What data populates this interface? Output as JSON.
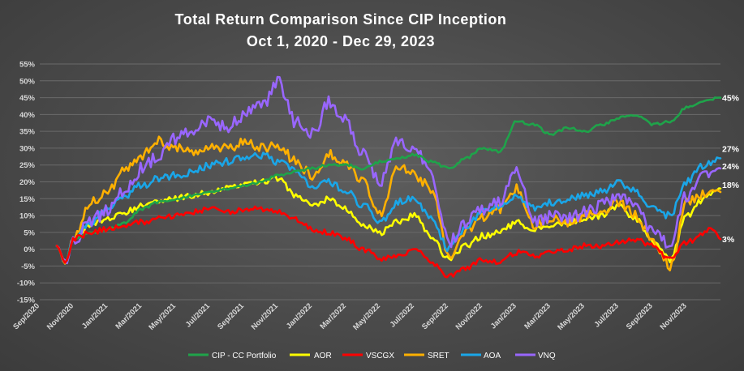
{
  "colors": {
    "cip": "#1fa34a",
    "aor": "#ffff00",
    "vscgx": "#ff0000",
    "sret": "#ffb000",
    "aoa": "#1aa6e8",
    "vnq": "#9966ff"
  },
  "chart_data": {
    "type": "line",
    "title": "Total Return Comparison Since CIP Inception",
    "subtitle": "Oct 1, 2020 - Dec 29, 2023",
    "xlabel": "",
    "ylabel": "",
    "ylim": [
      -15,
      55
    ],
    "y_ticks": [
      55,
      50,
      45,
      40,
      35,
      30,
      25,
      20,
      15,
      10,
      5,
      0,
      -5,
      -10,
      -15
    ],
    "y_tick_labels": [
      "55%",
      "50%",
      "45%",
      "40%",
      "35%",
      "30%",
      "25%",
      "20%",
      "15%",
      "10%",
      "5%",
      "0%",
      "-5%",
      "-10%",
      "-15%"
    ],
    "x_tick_labels": [
      "Sep/2020",
      "Nov/2020",
      "Jan/2021",
      "Mar/2021",
      "May/2021",
      "Jul/2021",
      "Sep/2021",
      "Nov/2021",
      "Jan/2022",
      "Mar/2022",
      "May/2022",
      "Jul/2022",
      "Sep/2022",
      "Nov/2022",
      "Jan/2023",
      "Mar/2023",
      "May/2023",
      "Jul/2023",
      "Sep/2023",
      "Nov/2023"
    ],
    "x_tick_months": [
      -1,
      1,
      3,
      5,
      7,
      9,
      11,
      13,
      15,
      17,
      19,
      21,
      23,
      25,
      27,
      29,
      31,
      33,
      35,
      37
    ],
    "x_range_months": [
      -1,
      38.97
    ],
    "grid": true,
    "legend_position": "bottom",
    "series": [
      {
        "name": "CIP - CC Portfolio",
        "color_key": "cip",
        "end_label": "45%",
        "x": [
          0,
          0.5,
          1,
          2,
          3,
          4,
          5,
          6,
          7,
          8,
          9,
          10,
          11,
          12,
          13,
          14,
          15,
          16,
          17,
          18,
          19,
          20,
          21,
          22,
          23,
          24,
          25,
          26,
          27,
          28,
          29,
          30,
          31,
          32,
          33,
          34,
          35,
          36,
          37,
          38,
          38.97
        ],
        "values": [
          1,
          -4,
          3,
          5,
          6,
          8,
          12,
          14,
          15,
          16,
          17,
          18,
          19,
          20,
          22,
          23,
          24,
          25,
          25,
          24,
          26,
          27,
          28,
          26,
          24,
          27,
          30,
          29,
          38,
          37,
          34,
          36,
          35,
          37,
          39,
          40,
          37,
          38,
          42,
          44,
          45
        ]
      },
      {
        "name": "AOR",
        "color_key": "aor",
        "end_label": "18%",
        "x": [
          0,
          0.5,
          1,
          2,
          3,
          4,
          5,
          6,
          7,
          8,
          9,
          10,
          11,
          12,
          13,
          14,
          15,
          16,
          17,
          18,
          19,
          20,
          21,
          22,
          23,
          24,
          25,
          26,
          27,
          28,
          29,
          30,
          31,
          32,
          33,
          34,
          35,
          36,
          37,
          38,
          38.97
        ],
        "values": [
          1,
          -4,
          3,
          7,
          9,
          11,
          13,
          14,
          15,
          16,
          17,
          18,
          19,
          20,
          21,
          16,
          13,
          15,
          12,
          7,
          5,
          8,
          10,
          4,
          -3,
          1,
          4,
          5,
          8,
          6,
          7,
          8,
          9,
          10,
          13,
          9,
          2,
          -3,
          10,
          15,
          18
        ]
      },
      {
        "name": "VSCGX",
        "color_key": "vscgx",
        "end_label": "3%",
        "x": [
          0,
          0.5,
          1,
          2,
          3,
          4,
          5,
          6,
          7,
          8,
          9,
          10,
          11,
          12,
          13,
          14,
          15,
          16,
          17,
          18,
          19,
          20,
          21,
          22,
          23,
          24,
          25,
          26,
          27,
          28,
          29,
          30,
          31,
          32,
          33,
          34,
          35,
          36,
          37,
          38,
          38.5,
          38.97
        ],
        "values": [
          1,
          -4,
          3,
          5,
          6,
          7,
          8,
          9,
          10,
          11,
          12,
          11,
          12,
          12,
          11,
          9,
          6,
          5,
          3,
          0,
          -3,
          -2,
          0,
          -4,
          -8,
          -6,
          -3,
          -4,
          -1,
          -2,
          -1,
          0,
          1,
          1,
          2,
          3,
          1,
          -3,
          2,
          5,
          6,
          3
        ]
      },
      {
        "name": "SRET",
        "color_key": "sret",
        "end_label": "",
        "x": [
          0,
          0.5,
          1,
          2,
          3,
          4,
          5,
          6,
          7,
          8,
          9,
          10,
          11,
          12,
          13,
          14,
          15,
          16,
          17,
          18,
          19,
          20,
          21,
          22,
          23,
          24,
          25,
          26,
          27,
          28,
          29,
          30,
          31,
          32,
          33,
          34,
          35,
          36,
          37,
          38,
          38.97
        ],
        "values": [
          1,
          -4,
          3,
          14,
          17,
          24,
          28,
          32,
          30,
          29,
          31,
          30,
          32,
          30,
          31,
          26,
          22,
          28,
          25,
          20,
          10,
          25,
          22,
          18,
          -2,
          5,
          9,
          12,
          18,
          7,
          9,
          8,
          10,
          11,
          14,
          10,
          3,
          -5,
          14,
          16,
          17
        ]
      },
      {
        "name": "AOA",
        "color_key": "aoa",
        "end_label": "27%",
        "x": [
          0,
          0.5,
          1,
          2,
          3,
          4,
          5,
          6,
          7,
          8,
          9,
          10,
          11,
          12,
          13,
          14,
          15,
          16,
          17,
          18,
          19,
          20,
          21,
          22,
          23,
          24,
          25,
          26,
          27,
          28,
          29,
          30,
          31,
          32,
          33,
          34,
          35,
          36,
          37,
          38,
          38.97
        ],
        "values": [
          1,
          -4,
          3,
          8,
          12,
          16,
          19,
          21,
          22,
          23,
          25,
          26,
          27,
          28,
          26,
          24,
          18,
          20,
          17,
          13,
          8,
          14,
          15,
          9,
          0,
          6,
          11,
          13,
          16,
          12,
          14,
          15,
          16,
          17,
          20,
          17,
          12,
          10,
          20,
          25,
          27
        ]
      },
      {
        "name": "VNQ",
        "color_key": "vnq",
        "end_label": "24%",
        "x": [
          0,
          0.5,
          1,
          2,
          3,
          4,
          5,
          6,
          7,
          8,
          9,
          10,
          11,
          12,
          13,
          14,
          15,
          16,
          17,
          18,
          19,
          20,
          21,
          22,
          23,
          24,
          25,
          26,
          27,
          28,
          29,
          30,
          31,
          32,
          33,
          34,
          35,
          36,
          37,
          38,
          38.97
        ],
        "values": [
          1,
          -4,
          3,
          8,
          12,
          18,
          24,
          28,
          33,
          36,
          38,
          36,
          40,
          42,
          50,
          38,
          34,
          44,
          38,
          28,
          20,
          32,
          30,
          22,
          2,
          8,
          12,
          14,
          23,
          8,
          10,
          9,
          11,
          13,
          16,
          12,
          5,
          2,
          16,
          22,
          24
        ]
      }
    ]
  }
}
